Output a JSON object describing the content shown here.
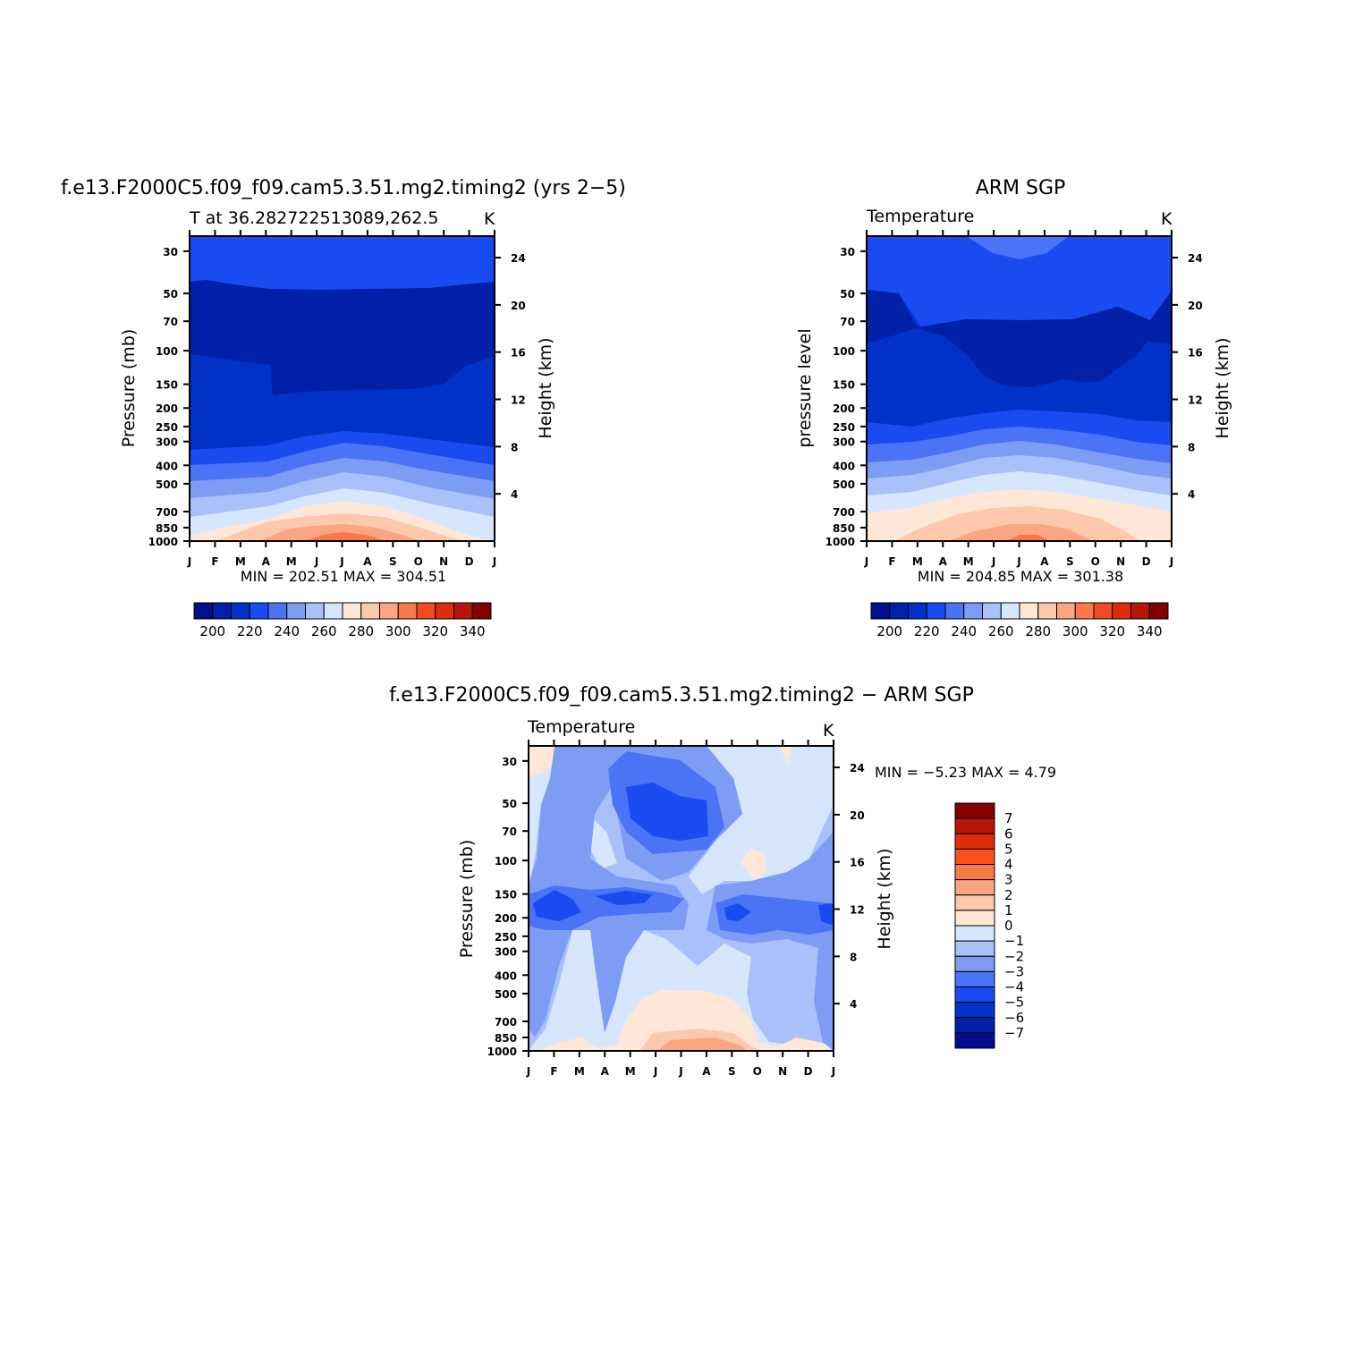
{
  "chart_data": [
    {
      "id": "panel-model",
      "type": "heatmap",
      "title": "f.e13.F2000C5.f09_f09.cam5.3.51.mg2.timing2 (yrs 2−5)",
      "subtitle_left": "T at 36.282722513089,262.5",
      "subtitle_right": "K",
      "ylabel": "Pressure (mb)",
      "ylabel_right": "Height (km)",
      "x_ticks": [
        "J",
        "F",
        "M",
        "A",
        "M",
        "J",
        "J",
        "A",
        "S",
        "O",
        "N",
        "D",
        "J"
      ],
      "y_ticks": [
        "30",
        "50",
        "70",
        "100",
        "150",
        "200",
        "250",
        "300",
        "400",
        "500",
        "700",
        "850",
        "1000"
      ],
      "y_right_ticks": [
        "24",
        "20",
        "16",
        "12",
        "8",
        "4"
      ],
      "minmax": "MIN = 202.51 MAX = 304.51",
      "colorbar": {
        "orientation": "horizontal",
        "labels": [
          "200",
          "220",
          "240",
          "260",
          "280",
          "300",
          "320",
          "340"
        ]
      },
      "ylim": [
        1000,
        25
      ]
    },
    {
      "id": "panel-obs",
      "type": "heatmap",
      "title": "ARM SGP",
      "subtitle_left": "Temperature",
      "subtitle_right": "K",
      "ylabel": "pressure level",
      "ylabel_right": "Height (km)",
      "x_ticks": [
        "J",
        "F",
        "M",
        "A",
        "M",
        "J",
        "J",
        "A",
        "S",
        "O",
        "N",
        "D",
        "J"
      ],
      "y_ticks": [
        "30",
        "50",
        "70",
        "100",
        "150",
        "200",
        "250",
        "300",
        "400",
        "500",
        "700",
        "850",
        "1000"
      ],
      "y_right_ticks": [
        "24",
        "20",
        "16",
        "12",
        "8",
        "4"
      ],
      "minmax": "MIN = 204.85 MAX = 301.38",
      "colorbar": {
        "orientation": "horizontal",
        "labels": [
          "200",
          "220",
          "240",
          "260",
          "280",
          "300",
          "320",
          "340"
        ]
      },
      "ylim": [
        1000,
        25
      ]
    },
    {
      "id": "panel-diff",
      "type": "heatmap",
      "title": "f.e13.F2000C5.f09_f09.cam5.3.51.mg2.timing2 − ARM SGP",
      "subtitle_left": "Temperature",
      "subtitle_right": "K",
      "ylabel": "Pressure (mb)",
      "ylabel_right": "Height (km)",
      "x_ticks": [
        "J",
        "F",
        "M",
        "A",
        "M",
        "J",
        "J",
        "A",
        "S",
        "O",
        "N",
        "D",
        "J"
      ],
      "y_ticks": [
        "30",
        "50",
        "70",
        "100",
        "150",
        "200",
        "250",
        "300",
        "400",
        "500",
        "700",
        "850",
        "1000"
      ],
      "y_right_ticks": [
        "24",
        "20",
        "16",
        "12",
        "8",
        "4"
      ],
      "minmax": "MIN =    −5.23 MAX =     4.79",
      "colorbar": {
        "orientation": "vertical",
        "labels": [
          "7",
          "6",
          "5",
          "4",
          "3",
          "2",
          "1",
          "0",
          "−1",
          "−2",
          "−3",
          "−4",
          "−5",
          "−6",
          "−7"
        ]
      },
      "ylim": [
        1000,
        25
      ]
    }
  ],
  "colors": {
    "temp_scale": [
      "#000e8f",
      "#0020a8",
      "#0032c8",
      "#1a4bf0",
      "#4a73f5",
      "#7d9df5",
      "#a9c0fa",
      "#d6e6fd",
      "#fee7d6",
      "#fdc8ac",
      "#fca582",
      "#fb774c",
      "#f04b20",
      "#db2e0a",
      "#b5160a",
      "#820000"
    ],
    "diff_scale": [
      "#820000",
      "#b5160a",
      "#db2e0a",
      "#fb501c",
      "#fc7a48",
      "#fca582",
      "#fdc8ac",
      "#fee7d6",
      "#d6e6fd",
      "#a9c0fa",
      "#7d9df5",
      "#4a73f5",
      "#1a4bf0",
      "#0032c8",
      "#0020a8",
      "#000e8f"
    ]
  }
}
